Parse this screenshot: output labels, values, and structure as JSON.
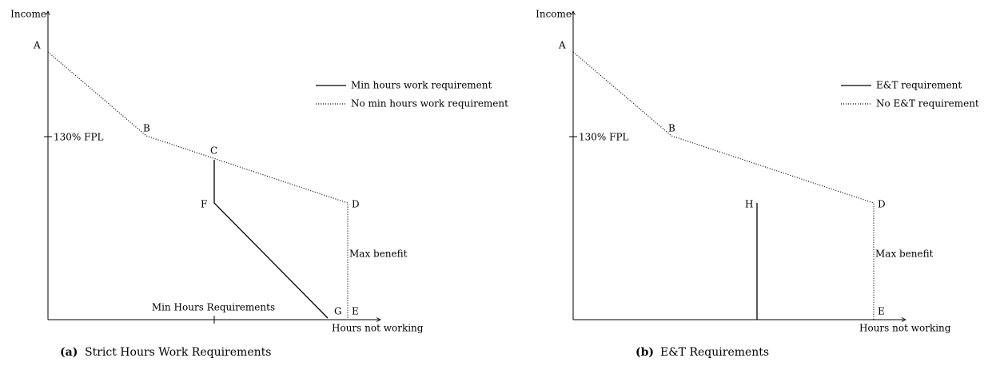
{
  "panels": [
    {
      "y_label": "Income",
      "x_label": "Hours not working",
      "tick_label": "130% FPL",
      "points": {
        "A": "A",
        "B": "B",
        "C": "C",
        "D": "D",
        "E": "E",
        "F": "F",
        "G": "G"
      },
      "annotations": [
        "Max benefit",
        "Min Hours Requirements"
      ],
      "legend": [
        "Min hours work requirement",
        "No min hours work requirement"
      ],
      "caption": {
        "tag": "(a)",
        "text": "Strict Hours Work Requirements"
      }
    },
    {
      "y_label": "Income",
      "x_label": "Hours not working",
      "tick_label": "130% FPL",
      "points": {
        "A": "A",
        "B": "B",
        "D": "D",
        "E": "E",
        "H": "H"
      },
      "annotations": [
        "Max benefit"
      ],
      "legend": [
        "E&T requirement",
        "No E&T requirement"
      ],
      "caption": {
        "tag": "(b)",
        "text": "E&T Requirements"
      }
    }
  ]
}
